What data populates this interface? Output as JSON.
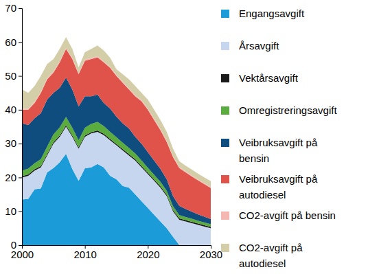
{
  "chart_data": {
    "type": "area",
    "stacked": true,
    "grid": false,
    "legend": "right",
    "x": [
      2000,
      2001,
      2002,
      2003,
      2004,
      2005,
      2006,
      2007,
      2008,
      2009,
      2010,
      2011,
      2012,
      2013,
      2014,
      2015,
      2016,
      2017,
      2018,
      2019,
      2020,
      2021,
      2022,
      2023,
      2024,
      2025,
      2026,
      2027,
      2028,
      2029,
      2030
    ],
    "xlim": [
      2000,
      2030
    ],
    "xticks": [
      2000,
      2010,
      2020,
      2030
    ],
    "ylim": [
      0,
      70
    ],
    "yticks": [
      0,
      10,
      20,
      30,
      40,
      50,
      60,
      70
    ],
    "series": [
      {
        "name": "Engangsavgift",
        "color": "#1b9bd7",
        "values": [
          13.5,
          13.7,
          16.5,
          16.8,
          21.5,
          22.8,
          24.5,
          27,
          22.5,
          19,
          22.7,
          23,
          24,
          23,
          20.5,
          19.5,
          17.5,
          17,
          15,
          13,
          11,
          9,
          7,
          5,
          2.5,
          0,
          0,
          0,
          0,
          0,
          0
        ]
      },
      {
        "name": "Årsavgift",
        "color": "#c6d6ef",
        "values": [
          6.5,
          6.8,
          5.5,
          6.2,
          5,
          7.2,
          7.5,
          8,
          9.5,
          9.5,
          9.3,
          10,
          9.5,
          9.5,
          10.5,
          10,
          10.5,
          9.5,
          10,
          10,
          10,
          10,
          10,
          9.5,
          7.5,
          7.5,
          7,
          6.5,
          6,
          5.5,
          5
        ]
      },
      {
        "name": "Vektårsavgift",
        "color": "#1a1a1a",
        "values": [
          0.4,
          0.4,
          0.4,
          0.4,
          0.4,
          0.4,
          0.4,
          0.4,
          0.4,
          0.4,
          0.4,
          0.4,
          0.4,
          0.4,
          0.4,
          0.4,
          0.4,
          0.4,
          0.4,
          0.4,
          0.4,
          0.4,
          0.4,
          0.4,
          0.4,
          0.4,
          0.4,
          0.4,
          0.4,
          0.4,
          0.4
        ]
      },
      {
        "name": "Omregistreringsavgift",
        "color": "#5bac3f",
        "values": [
          1.6,
          1.7,
          1.8,
          2,
          2.2,
          2.3,
          2.4,
          2.5,
          2.3,
          2.1,
          2.3,
          2.4,
          2.5,
          2.3,
          2.1,
          2,
          1.9,
          1.8,
          1.7,
          1.6,
          1.5,
          1.4,
          1.3,
          1.2,
          1.1,
          1,
          0.9,
          0.9,
          0.8,
          0.8,
          0.8
        ]
      },
      {
        "name": "Veibruksavgift på bensin",
        "color": "#0f4d7f",
        "values": [
          14,
          12.9,
          13.3,
          13.6,
          13.9,
          12.3,
          11.7,
          11.6,
          11.3,
          10,
          9.3,
          8.2,
          8.1,
          6.8,
          6.9,
          6.1,
          5.7,
          5.8,
          4.9,
          5,
          4.6,
          4.2,
          3.8,
          3.4,
          3,
          2.7,
          2.4,
          2.1,
          1.9,
          1.7,
          1.5
        ]
      },
      {
        "name": "Veibruksavgift på autodiesel",
        "color": "#e0534b",
        "values": [
          4,
          4.5,
          4.5,
          6,
          6,
          6,
          7.5,
          8.5,
          9,
          9.5,
          10.5,
          11,
          11,
          12,
          12,
          12,
          12,
          11.5,
          12,
          12.5,
          12.5,
          12,
          11.5,
          11,
          11.5,
          11.2,
          10.8,
          10.4,
          10,
          9.6,
          9.2
        ]
      },
      {
        "name": "CO2-avgift på bensin",
        "color": "#f4b7b1",
        "values": [
          0.3,
          0.3,
          0.3,
          0.3,
          0.3,
          0.3,
          0.3,
          0.3,
          0.3,
          0.3,
          0.3,
          0.3,
          0.3,
          0.3,
          0.3,
          0.3,
          0.3,
          0.3,
          0.3,
          0.3,
          0.3,
          0.3,
          0.3,
          0.3,
          0.3,
          0.3,
          0.3,
          0.3,
          0.3,
          0.3,
          0.3
        ]
      },
      {
        "name": "CO2-avgift på autodiesel",
        "color": "#d3cda8",
        "values": [
          5.7,
          4.7,
          4.7,
          4.7,
          4.2,
          3.7,
          3.7,
          3.2,
          2.7,
          1.7,
          2.2,
          2.7,
          3.2,
          3.2,
          2.7,
          1.7,
          2.2,
          2.7,
          2.7,
          2.2,
          2.7,
          2.7,
          2.7,
          2.7,
          2.2,
          1.7,
          1.7,
          1.7,
          1.7,
          1.7,
          1.7
        ]
      }
    ]
  }
}
